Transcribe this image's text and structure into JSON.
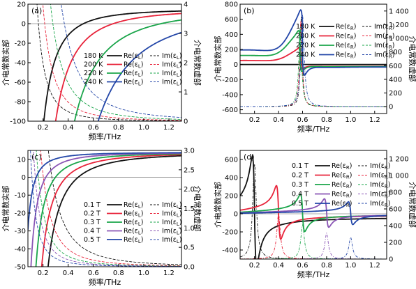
{
  "chart_data": [
    {
      "panel": "(a)",
      "type": "line",
      "xlabel": "频率/THz",
      "ylabel": "介电常数实部",
      "y2label": "介电常数虚部",
      "xlim": [
        0.08,
        1.3
      ],
      "ylim": [
        -100,
        20
      ],
      "y2lim": [
        0,
        4
      ],
      "xticks": [
        "0.2",
        "0.4",
        "0.6",
        "0.8",
        "1.0",
        "1.2"
      ],
      "yticks": [
        "20",
        "0",
        "-20",
        "-40",
        "-60",
        "-80",
        "-100"
      ],
      "y2ticks": [
        "4",
        "3",
        "2",
        "1",
        "0"
      ],
      "legend_position": "center-right",
      "legend": [
        {
          "label": "180 K",
          "re": "Re(ε_L)",
          "im": "Im(ε_L)"
        },
        {
          "label": "200 K",
          "re": "Re(ε_L)",
          "im": "Im(ε_L)"
        },
        {
          "label": "220 K",
          "re": "Re(ε_L)",
          "im": "Im(ε_L)"
        },
        {
          "label": "240 K",
          "re": "Re(ε_L)",
          "im": "Im(ε_L)"
        }
      ],
      "series": [
        {
          "name": "180 K",
          "color": "#111111",
          "re_inf": 15,
          "re_p": 0.22,
          "im_a": 0.03,
          "im_floor": 0.0
        },
        {
          "name": "200 K",
          "color": "#e8233a",
          "re_inf": 15,
          "re_p": 0.32,
          "im_a": 0.06,
          "im_floor": 0.0
        },
        {
          "name": "220 K",
          "color": "#1aa54a",
          "re_inf": 15,
          "re_p": 0.48,
          "im_a": 0.12,
          "im_floor": 0.0
        },
        {
          "name": "240 K",
          "color": "#2346a8",
          "re_inf": 15,
          "re_p": 0.68,
          "im_a": 0.25,
          "im_floor": 0.0
        }
      ]
    },
    {
      "panel": "(b)",
      "type": "line",
      "xlabel": "频率/THz",
      "ylabel": "介电常数实部",
      "y2label": "介电常数虚部",
      "xlim": [
        0.08,
        1.3
      ],
      "ylim": [
        -650,
        800
      ],
      "y2lim": [
        -100,
        1500
      ],
      "xticks": [
        "0.2",
        "0.4",
        "0.6",
        "0.8",
        "1.0",
        "1.2"
      ],
      "yticks": [
        "800",
        "600",
        "400",
        "200",
        "0",
        "-200",
        "-400",
        "-600"
      ],
      "y2ticks": [
        "1 400",
        "1 200",
        "1 000",
        "800",
        "600",
        "400",
        "200",
        "0"
      ],
      "legend_position": "top-right",
      "legend": [
        {
          "label": "180 K",
          "re": "Re(ε_R)",
          "im": "Im(ε_R)"
        },
        {
          "label": "200 K",
          "re": "Re(ε_R)",
          "im": "Im(ε_R)"
        },
        {
          "label": "220 K",
          "re": "Re(ε_R)",
          "im": "Im(ε_R)"
        },
        {
          "label": "240 K",
          "re": "Re(ε_R)",
          "im": "Im(ε_R)"
        }
      ],
      "series": [
        {
          "name": "180 K",
          "color": "#111111",
          "re_base": 0,
          "re_peak": 0,
          "w0": 0.59,
          "gam": 0.01,
          "im_peak": 1360
        },
        {
          "name": "200 K",
          "color": "#e8233a",
          "re_base": -30,
          "re_peak": 230,
          "w0": 0.585,
          "gam": 0.012,
          "im_peak": 1260
        },
        {
          "name": "220 K",
          "color": "#1aa54a",
          "re_base": -40,
          "re_peak": 440,
          "w0": 0.58,
          "gam": 0.014,
          "im_peak": 1160
        },
        {
          "name": "240 K",
          "color": "#2346a8",
          "re_base": -70,
          "re_peak": 720,
          "w0": 0.6,
          "gam": 0.016,
          "im_peak": 1340
        }
      ]
    },
    {
      "panel": "(c)",
      "type": "line",
      "xlabel": "频率/THz",
      "ylabel": "介电常数实部",
      "y2label": "介电常数虚部",
      "xlim": [
        0.08,
        1.3
      ],
      "ylim": [
        -50,
        15
      ],
      "y2lim": [
        0,
        3
      ],
      "xticks": [
        "0.2",
        "0.4",
        "0.6",
        "0.8",
        "1.0",
        "1.2"
      ],
      "yticks": [
        "10",
        "0",
        "-10",
        "-20",
        "-30",
        "-40",
        "-50"
      ],
      "y2ticks": [
        "3.0",
        "2.5",
        "2.0",
        "1.5",
        "1.0",
        "0.5",
        "0.0"
      ],
      "legend_position": "center-right",
      "legend": [
        {
          "label": "0.1 T",
          "re": "Re(ε_L)",
          "im": "Im(ε_L)"
        },
        {
          "label": "0.2 T",
          "re": "Re(ε_L)",
          "im": "Im(ε_L)"
        },
        {
          "label": "0.3 T",
          "re": "Re(ε_L)",
          "im": "Im(ε_L)"
        },
        {
          "label": "0.4 T",
          "re": "Re(ε_L)",
          "im": "Im(ε_L)"
        },
        {
          "label": "0.5 T",
          "re": "Re(ε_L)",
          "im": "Im(ε_L)"
        }
      ],
      "series": [
        {
          "name": "0.1 T",
          "color": "#111111",
          "shift": 0.4,
          "im_a": 0.1
        },
        {
          "name": "0.2 T",
          "color": "#e8233a",
          "shift": 0.28,
          "im_a": 0.05
        },
        {
          "name": "0.3 T",
          "color": "#1aa54a",
          "shift": 0.18,
          "im_a": 0.03
        },
        {
          "name": "0.4 T",
          "color": "#8a55b5",
          "shift": 0.1,
          "im_a": 0.02
        },
        {
          "name": "0.5 T",
          "color": "#2346a8",
          "shift": 0.03,
          "im_a": 0.012
        }
      ]
    },
    {
      "panel": "(d)",
      "type": "line",
      "xlabel": "频率/THz",
      "ylabel": "介电常数实部",
      "y2label": "介电常数虚部",
      "xlim": [
        0.08,
        1.3
      ],
      "ylim": [
        -500,
        700
      ],
      "y2lim": [
        0,
        1300
      ],
      "xticks": [
        "0.2",
        "0.4",
        "0.6",
        "0.8",
        "1.0",
        "1.2"
      ],
      "yticks": [
        "600",
        "400",
        "200",
        "0",
        "-200",
        "-400"
      ],
      "y2ticks": [
        "1 200",
        "1 000",
        "800",
        "600",
        "400",
        "200",
        "0"
      ],
      "legend_position": "top-left",
      "legend": [
        {
          "label": "0.1 T",
          "re": "Re(ε_R)",
          "im": "Im(ε_R)"
        },
        {
          "label": "0.2 T",
          "re": "Re(ε_R)",
          "im": "Im(ε_R)"
        },
        {
          "label": "0.3 T",
          "re": "Re(ε_R)",
          "im": "Im(ε_R)"
        },
        {
          "label": "0.4 T",
          "re": "Re(ε_R)",
          "im": "Im(ε_R)"
        },
        {
          "label": "0.5 T",
          "re": "Re(ε_R)",
          "im": "Im(ε_R)"
        }
      ],
      "series": [
        {
          "name": "0.1 T",
          "color": "#111111",
          "w0": 0.2,
          "amp": 680,
          "im_peak": 1150,
          "gam": 0.018
        },
        {
          "name": "0.2 T",
          "color": "#e8233a",
          "w0": 0.4,
          "amp": 330,
          "im_peak": 540,
          "gam": 0.018
        },
        {
          "name": "0.3 T",
          "color": "#1aa54a",
          "w0": 0.6,
          "amp": 230,
          "im_peak": 410,
          "gam": 0.018
        },
        {
          "name": "0.4 T",
          "color": "#8a55b5",
          "w0": 0.8,
          "amp": 175,
          "im_peak": 310,
          "gam": 0.018
        },
        {
          "name": "0.5 T",
          "color": "#2346a8",
          "w0": 1.0,
          "amp": 140,
          "im_peak": 260,
          "gam": 0.018
        }
      ]
    }
  ]
}
